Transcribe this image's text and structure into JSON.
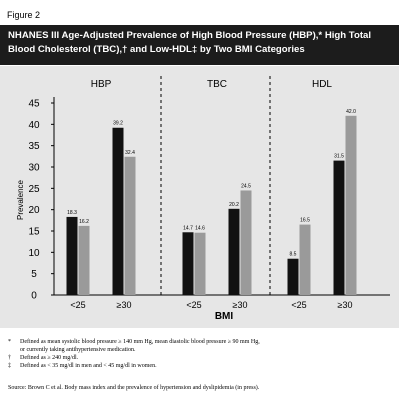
{
  "figure_label": "Figure 2",
  "title_line1": "NHANES III Age-Adjusted Prevalence of High Blood Pressure (HBP),* High Total",
  "title_line2": "Blood Cholesterol (TBC),† and Low-HDL‡ by Two BMI Categories",
  "footnotes": [
    {
      "mark": "*",
      "lines": [
        "Defined as mean systolic blood pressure ≥ 140 mm Hg, mean diastolic blood pressure ≥ 90 mm Hg,",
        "or currently taking antihypertensive medication."
      ]
    },
    {
      "mark": "†",
      "lines": [
        "Defined as ≥ 240 mg/dl."
      ]
    },
    {
      "mark": "‡",
      "lines": [
        "Defined as < 35 mg/dl in men and < 45 mg/dl in women."
      ]
    }
  ],
  "source": "Source: Brown C et al. Body mass index and the prevalence of hypertension and dyslipidemia (in press).",
  "colors": {
    "panel_bg": "#e6e6e6",
    "bar_dark": "#111111",
    "bar_light": "#9a9a9a",
    "title_bg": "#1c1c1c",
    "title_text": "#ffffff"
  },
  "chart_data": {
    "type": "bar",
    "ylabel": "Prevalence",
    "xlabel": "BMI",
    "ylim": [
      0,
      45
    ],
    "yticks": [
      0,
      5,
      10,
      15,
      20,
      25,
      30,
      35,
      40,
      45
    ],
    "grid": false,
    "groups": [
      {
        "name": "HBP",
        "categories": [
          "<25",
          "≥30"
        ],
        "values": [
          [
            18.3,
            16.2
          ],
          [
            39.2,
            32.4
          ]
        ],
        "value_labels": [
          [
            "18.3",
            "16.2"
          ],
          [
            "39.2",
            "32.4"
          ]
        ]
      },
      {
        "name": "TBC",
        "categories": [
          "<25",
          "≥30"
        ],
        "values": [
          [
            14.7,
            14.6
          ],
          [
            20.2,
            24.5
          ]
        ],
        "value_labels": [
          [
            "14.7",
            "14.6"
          ],
          [
            "20.2",
            "24.5"
          ]
        ]
      },
      {
        "name": "HDL",
        "categories": [
          "<25",
          "≥30"
        ],
        "values": [
          [
            8.5,
            16.5
          ],
          [
            31.5,
            42.0
          ]
        ],
        "value_labels": [
          [
            "8.5",
            "16.5"
          ],
          [
            "31.5",
            "42.0"
          ]
        ]
      }
    ]
  }
}
